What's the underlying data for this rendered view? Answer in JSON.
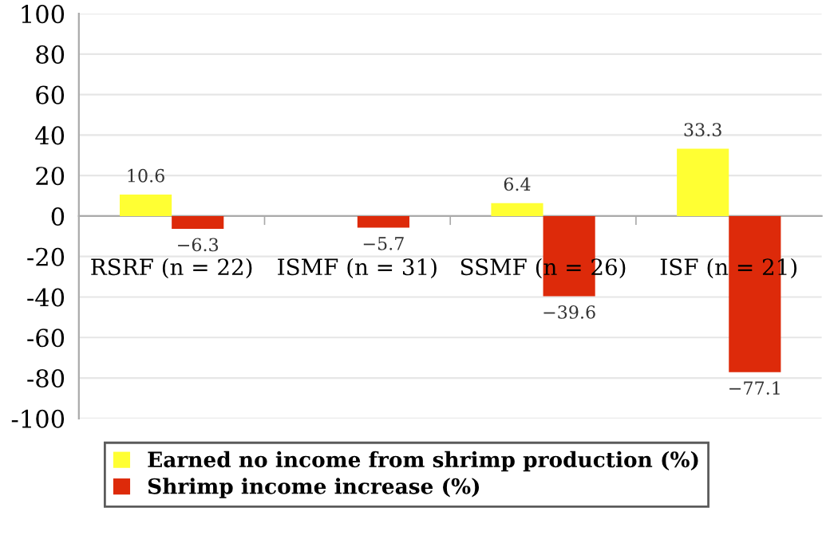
{
  "chart_data": {
    "type": "bar",
    "categories": [
      "RSRF (n = 22)",
      "ISMF (n = 31)",
      "SSMF (n = 26)",
      "ISF (n = 21)"
    ],
    "series": [
      {
        "name": "Earned no income from shrimp production (%)",
        "color": "#ffff33",
        "values": [
          10.6,
          0,
          6.4,
          33.3
        ],
        "value_labels": [
          "10.6",
          null,
          "6.4",
          "33.3"
        ]
      },
      {
        "name": "Shrimp income increase (%)",
        "color": "#dd2a0a",
        "values": [
          -6.3,
          -5.7,
          -39.6,
          -77.1
        ],
        "value_labels": [
          "−6.3",
          "−5.7",
          "−39.6",
          "−77.1"
        ]
      }
    ],
    "ylim": [
      -100,
      100
    ],
    "yticks": [
      -100,
      -80,
      -60,
      -40,
      -20,
      0,
      20,
      40,
      60,
      80,
      100
    ],
    "grid": "y",
    "legend": "bottom"
  }
}
